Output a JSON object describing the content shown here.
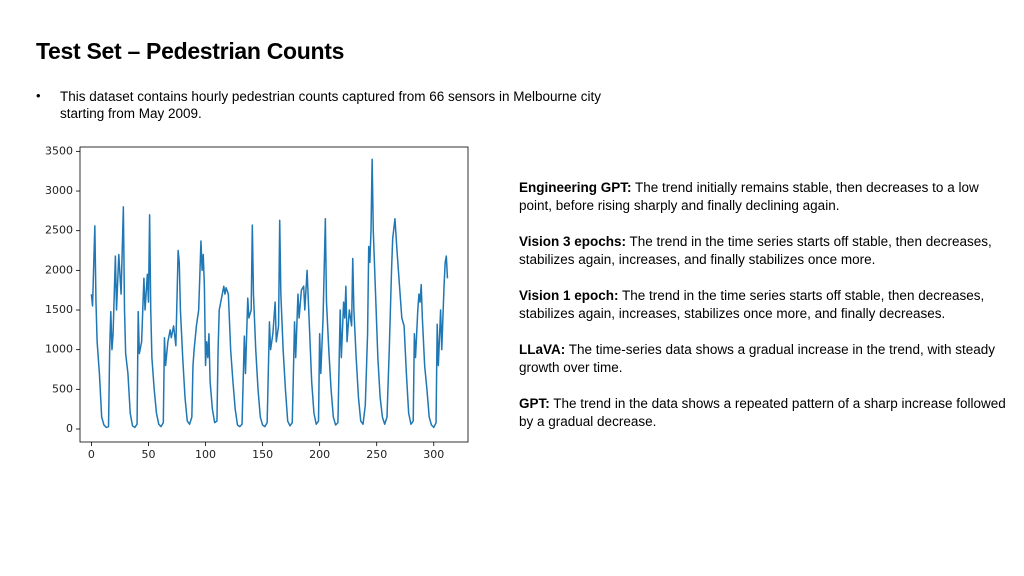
{
  "title": "Test Set – Pedestrian Counts",
  "bullet": "This dataset contains hourly pedestrian counts captured from 66 sensors in Melbourne city starting from May 2009.",
  "bullet_marker": "•",
  "descriptions": [
    {
      "label": "Engineering GPT:",
      "text": "The trend initially remains stable, then decreases to a low point, before rising sharply and finally declining again."
    },
    {
      "label": "Vision 3 epochs:",
      "text": "The trend in the time series starts off stable, then decreases, stabilizes again, increases, and finally stabilizes once more."
    },
    {
      "label": "Vision 1 epoch:",
      "text": "The trend in the time series starts off stable, then decreases, stabilizes again, increases, stabilizes once more, and finally decreases."
    },
    {
      "label": "LLaVA:",
      "text": "The time-series data shows a gradual increase in the trend, with steady growth over time."
    },
    {
      "label": "GPT:",
      "text": "The trend in the data shows a repeated pattern of a sharp increase followed by a gradual decrease."
    }
  ],
  "chart_data": {
    "type": "line",
    "color": "#1f77b4",
    "x": [
      0,
      1,
      3,
      4,
      5,
      7,
      9,
      11,
      13,
      15,
      16,
      17,
      18,
      19,
      21,
      22,
      24,
      26,
      28,
      29,
      30,
      32,
      34,
      36,
      38,
      40,
      41,
      42,
      44,
      46,
      47,
      49,
      50,
      51,
      52,
      53,
      55,
      57,
      59,
      61,
      63,
      64,
      65,
      67,
      69,
      70,
      72,
      74,
      76,
      77,
      78,
      80,
      82,
      84,
      86,
      88,
      89,
      90,
      92,
      94,
      96,
      97,
      98,
      99,
      100,
      101,
      102,
      103,
      104,
      106,
      108,
      110,
      111,
      112,
      114,
      116,
      117,
      118,
      120,
      122,
      124,
      126,
      128,
      130,
      132,
      134,
      135,
      137,
      138,
      140,
      141,
      142,
      144,
      146,
      148,
      150,
      152,
      154,
      156,
      157,
      159,
      160,
      161,
      162,
      164,
      165,
      166,
      168,
      170,
      172,
      174,
      176,
      178,
      179,
      181,
      182,
      184,
      186,
      187,
      189,
      191,
      193,
      195,
      197,
      199,
      200,
      201,
      203,
      205,
      206,
      208,
      210,
      212,
      214,
      216,
      218,
      219,
      221,
      222,
      223,
      224,
      226,
      228,
      229,
      230,
      232,
      234,
      236,
      238,
      240,
      242,
      243,
      244,
      245,
      246,
      247,
      249,
      251,
      253,
      255,
      257,
      259,
      261,
      263,
      264,
      266,
      268,
      270,
      272,
      274,
      276,
      278,
      280,
      282,
      283,
      284,
      286,
      287,
      288,
      289,
      290,
      292,
      294,
      296,
      298,
      300,
      302,
      303,
      304,
      306,
      307,
      309,
      310,
      311,
      312
    ],
    "values": [
      1700,
      1550,
      2560,
      1600,
      1100,
      700,
      150,
      50,
      20,
      30,
      1000,
      1480,
      1000,
      1200,
      2180,
      1500,
      2200,
      1700,
      2800,
      1500,
      950,
      700,
      200,
      40,
      20,
      60,
      1480,
      950,
      1100,
      1900,
      1500,
      1950,
      1600,
      2700,
      1500,
      900,
      500,
      200,
      60,
      30,
      80,
      1150,
      800,
      1100,
      1250,
      1150,
      1300,
      1050,
      2250,
      2100,
      1500,
      900,
      400,
      100,
      60,
      150,
      800,
      1000,
      1300,
      1500,
      2370,
      2000,
      2200,
      1800,
      800,
      1100,
      900,
      1200,
      600,
      250,
      80,
      100,
      1000,
      1500,
      1650,
      1800,
      1700,
      1780,
      1700,
      1000,
      600,
      250,
      50,
      30,
      60,
      1170,
      700,
      1650,
      1400,
      1500,
      2570,
      1700,
      1000,
      500,
      150,
      50,
      30,
      80,
      1350,
      1000,
      1200,
      1400,
      1600,
      1100,
      1300,
      2630,
      1700,
      1000,
      500,
      100,
      40,
      80,
      1350,
      900,
      1700,
      1400,
      1750,
      1800,
      1500,
      2000,
      1300,
      600,
      200,
      60,
      100,
      1200,
      700,
      1400,
      2650,
      1600,
      1000,
      500,
      150,
      50,
      80,
      1500,
      900,
      1600,
      1400,
      1800,
      1100,
      1500,
      1300,
      2150,
      1500,
      900,
      400,
      100,
      60,
      300,
      1200,
      2300,
      2100,
      2500,
      3400,
      2500,
      1700,
      900,
      400,
      150,
      60,
      150,
      1000,
      2000,
      2400,
      2650,
      2200,
      1800,
      1400,
      1300,
      700,
      200,
      60,
      100,
      1200,
      900,
      1500,
      1700,
      1600,
      1820,
      1400,
      800,
      500,
      150,
      50,
      20,
      80,
      1320,
      800,
      1500,
      1000,
      1800,
      2100,
      2180,
      1900
    ],
    "xlim": [
      -10,
      330
    ],
    "xticks": [
      0,
      50,
      100,
      150,
      200,
      250,
      300
    ],
    "ylim": [
      -164,
      3555
    ],
    "yticks": [
      0,
      500,
      1000,
      1500,
      2000,
      2500,
      3000,
      3500
    ]
  }
}
